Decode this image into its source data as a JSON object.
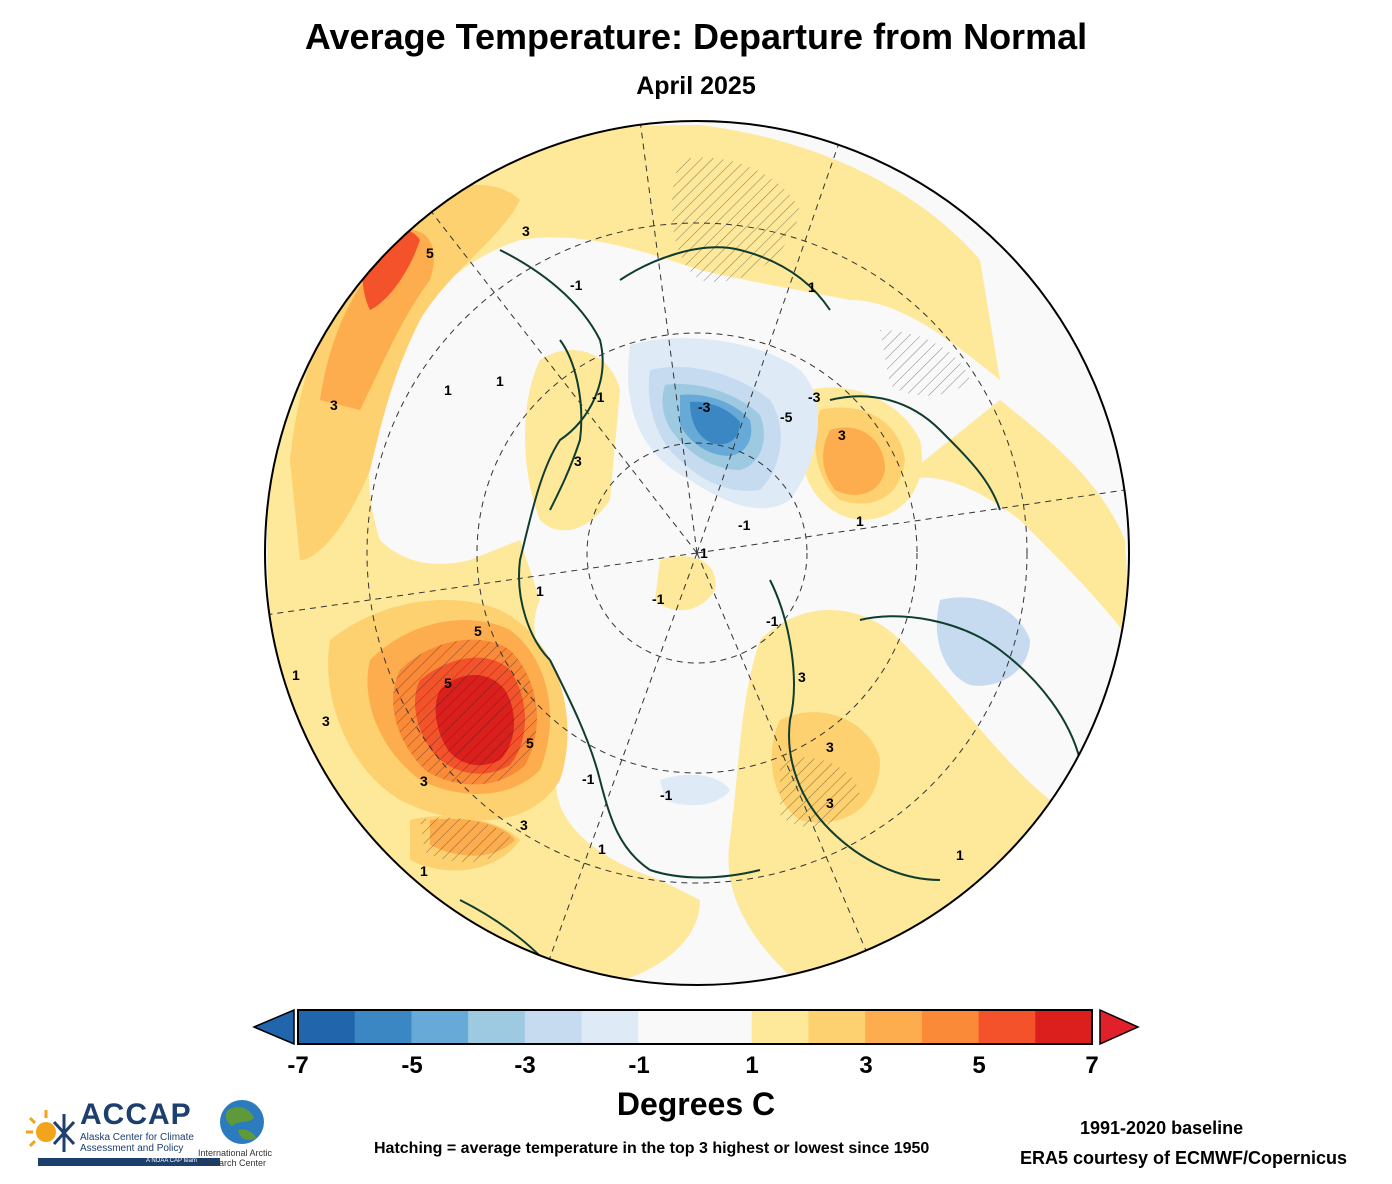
{
  "title": "Average Temperature: Departure from Normal",
  "subtitle": "April 2025",
  "map": {
    "projection": "north-polar-stereographic",
    "region": "Arctic",
    "contour_labels": [
      "5",
      "3",
      "3",
      "1",
      "3",
      "1",
      "-3",
      "-5",
      "-3",
      "3",
      "-1",
      "1",
      "5",
      "5",
      "3",
      "3",
      "3",
      "3",
      "-1",
      "1",
      "1",
      "3",
      "-1",
      "1",
      "-1",
      "1",
      "1",
      "-1",
      "-1",
      "5",
      "3",
      "1",
      "1",
      "-1"
    ],
    "colors": {
      "land_outline": "#0f3d2e",
      "graticule": "#333333"
    }
  },
  "legend": {
    "type": "colorbar",
    "labels": [
      "-7",
      "-5",
      "-3",
      "-1",
      "1",
      "3",
      "5",
      "7"
    ],
    "colors": [
      "#2166ac",
      "#3a87c4",
      "#67a9d7",
      "#9ecae1",
      "#c6dbef",
      "#deebf7",
      "#f9f9f9",
      "#f9f9f9",
      "#fee89a",
      "#fdd070",
      "#fdad4e",
      "#fb8a38",
      "#f4522a",
      "#db1f1c"
    ],
    "under_color": "#2166ac",
    "over_color": "#e0212b",
    "units": "Degrees C"
  },
  "notes": {
    "hatching": "Hatching = average temperature in the top 3 highest or lowest since 1950",
    "baseline": "1991-2020 baseline",
    "credit": "ERA5 courtesy of ECMWF/Copernicus"
  },
  "logos": {
    "accap_name": "ACCAP",
    "accap_sub": "Alaska Center for Climate Assessment and Policy",
    "accap_bar": "A NOAA CAP team",
    "iarc_text": "International Arctic Research Center"
  }
}
